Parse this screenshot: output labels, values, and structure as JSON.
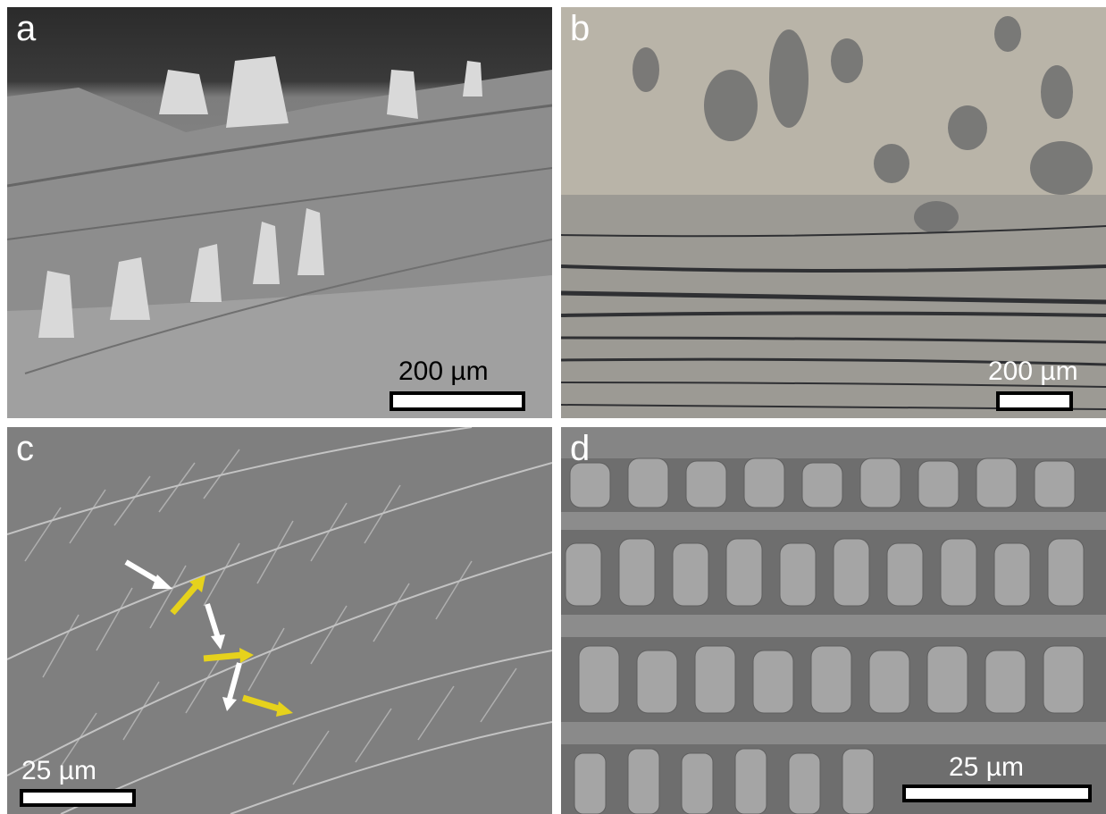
{
  "panels": [
    {
      "label": "a",
      "scale": "200 µm",
      "type": "SEM"
    },
    {
      "label": "b",
      "scale": "200 µm",
      "type": "optical micrograph"
    },
    {
      "label": "c",
      "scale": "25 µm",
      "type": "SEM"
    },
    {
      "label": "d",
      "scale": "25 µm",
      "type": "SEM"
    }
  ],
  "colors": {
    "sem_gray": "#8a8a8a",
    "optical_bg": "#b9b4a8",
    "arrow_yellow": "#e6d21c",
    "arrow_white": "#ffffff"
  }
}
